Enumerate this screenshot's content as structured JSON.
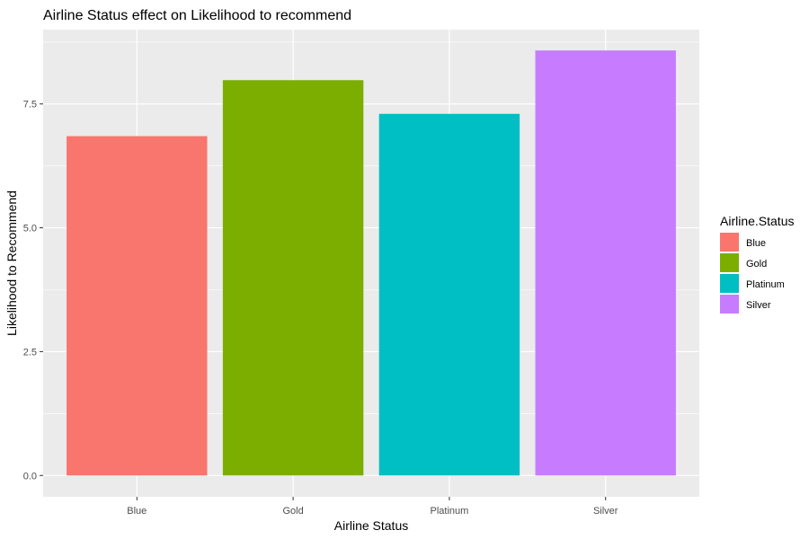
{
  "chart_data": {
    "type": "bar",
    "title": "Airline Status effect on Likelihood to recommend",
    "xlabel": "Airline Status",
    "ylabel": "Likelihood to Recommend",
    "categories": [
      "Blue",
      "Gold",
      "Platinum",
      "Silver"
    ],
    "values": [
      6.85,
      7.98,
      7.3,
      8.58
    ],
    "colors": [
      "#F8766D",
      "#7CAE00",
      "#00BFC4",
      "#C77CFF"
    ],
    "ylim": [
      -0.43,
      9.0
    ],
    "yticks": [
      0.0,
      2.5,
      5.0,
      7.5
    ],
    "ytick_labels": [
      "0.0",
      "2.5",
      "5.0",
      "7.5"
    ],
    "grid": true,
    "panel_background": "#EBEBEB",
    "grid_color": "#FFFFFF",
    "legend": {
      "title": "Airline.Status",
      "position": "right",
      "entries": [
        "Blue",
        "Gold",
        "Platinum",
        "Silver"
      ]
    }
  }
}
